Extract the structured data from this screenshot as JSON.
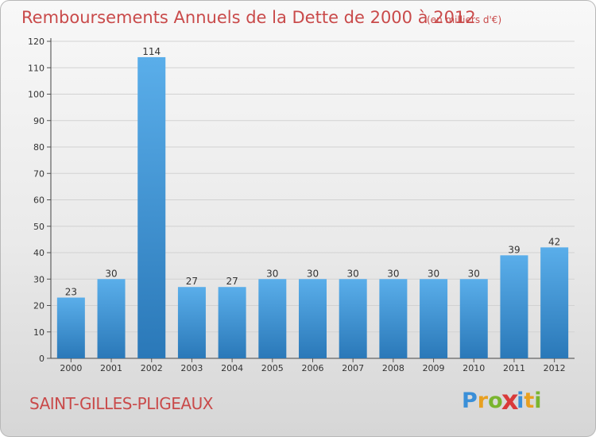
{
  "header": {
    "title": "Remboursements Annuels de la Dette de 2000 à 2012",
    "subtitle": "(en milliers d'€)"
  },
  "footer": {
    "city": "SAINT-GILLES-PLIGEAUX",
    "logo_letters": [
      "P",
      "r",
      "o",
      "x",
      "i",
      "t",
      "i"
    ],
    "logo_colors": [
      "#3a8fd8",
      "#e8a020",
      "#7ab52f",
      "#d93a3a",
      "#3a8fd8",
      "#e8a020",
      "#7ab52f"
    ]
  },
  "colors": {
    "title": "#c94a4a",
    "bar_light": "#5aaeea",
    "bar_dark": "#2a78b8",
    "grid": "#d2d2d2"
  },
  "chart_data": {
    "type": "bar",
    "title": "Remboursements Annuels de la Dette de 2000 à 2012",
    "subtitle": "(en milliers d'€)",
    "xlabel": "",
    "ylabel": "",
    "categories": [
      "2000",
      "2001",
      "2002",
      "2003",
      "2004",
      "2005",
      "2006",
      "2007",
      "2008",
      "2009",
      "2010",
      "2011",
      "2012"
    ],
    "values": [
      23,
      30,
      114,
      27,
      27,
      30,
      30,
      30,
      30,
      30,
      30,
      39,
      42
    ],
    "ylim": [
      0,
      120
    ],
    "yticks": [
      0,
      10,
      20,
      30,
      40,
      50,
      60,
      70,
      80,
      90,
      100,
      110,
      120
    ],
    "grid": true,
    "legend": "none"
  }
}
